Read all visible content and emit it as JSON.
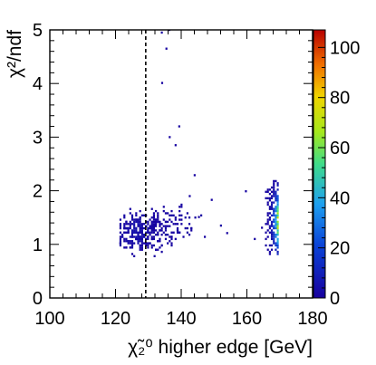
{
  "chart_data": {
    "type": "heatmap",
    "title": "",
    "xlabel": "χ̃₂⁰ higher edge [GeV]",
    "ylabel": "χ²/ndf",
    "xlim": [
      100,
      180
    ],
    "ylim": [
      0,
      5
    ],
    "x_ticks": [
      "100",
      "120",
      "140",
      "160",
      "180"
    ],
    "y_ticks": [
      "0",
      "1",
      "2",
      "3",
      "4",
      "5"
    ],
    "z_ticks": [
      "0",
      "20",
      "40",
      "60",
      "80",
      "100"
    ],
    "zlim": [
      0,
      107
    ],
    "reference_line": {
      "x": 129.2,
      "style": "dashed"
    },
    "cluster_low": {
      "x_range": [
        121,
        148
      ],
      "y_range": [
        0.75,
        2.3
      ],
      "peak_x": 126,
      "peak_y": 1.2,
      "peak_count": 5
    },
    "cluster_high": {
      "x_range": [
        165.5,
        169.5
      ],
      "y_range": [
        0.8,
        2.2
      ],
      "peak_x": 168.7,
      "peak_y": 1.4,
      "peak_count": 107
    },
    "outliers": [
      {
        "x": 133.8,
        "y": 4.93,
        "count": 1
      },
      {
        "x": 136.1,
        "y": 4.98,
        "count": 1
      },
      {
        "x": 135.2,
        "y": 4.63,
        "count": 1
      },
      {
        "x": 133.9,
        "y": 3.99,
        "count": 1
      },
      {
        "x": 139.1,
        "y": 3.18,
        "count": 1
      },
      {
        "x": 136.2,
        "y": 2.98,
        "count": 1
      },
      {
        "x": 138.0,
        "y": 2.83,
        "count": 1
      },
      {
        "x": 159.4,
        "y": 1.97,
        "count": 1
      },
      {
        "x": 151.8,
        "y": 1.33,
        "count": 1
      },
      {
        "x": 145.1,
        "y": 1.49,
        "count": 1
      },
      {
        "x": 146.9,
        "y": 1.12,
        "count": 1
      },
      {
        "x": 142.3,
        "y": 1.88,
        "count": 1
      },
      {
        "x": 153.7,
        "y": 1.19,
        "count": 1
      },
      {
        "x": 162.1,
        "y": 1.08,
        "count": 1
      },
      {
        "x": 164.3,
        "y": 1.29,
        "count": 1
      },
      {
        "x": 149.0,
        "y": 1.81,
        "count": 1
      },
      {
        "x": 131.6,
        "y": 0.76,
        "count": 1
      },
      {
        "x": 143.8,
        "y": 2.27,
        "count": 1
      }
    ],
    "grid": false,
    "legend": "color-scale-right"
  }
}
